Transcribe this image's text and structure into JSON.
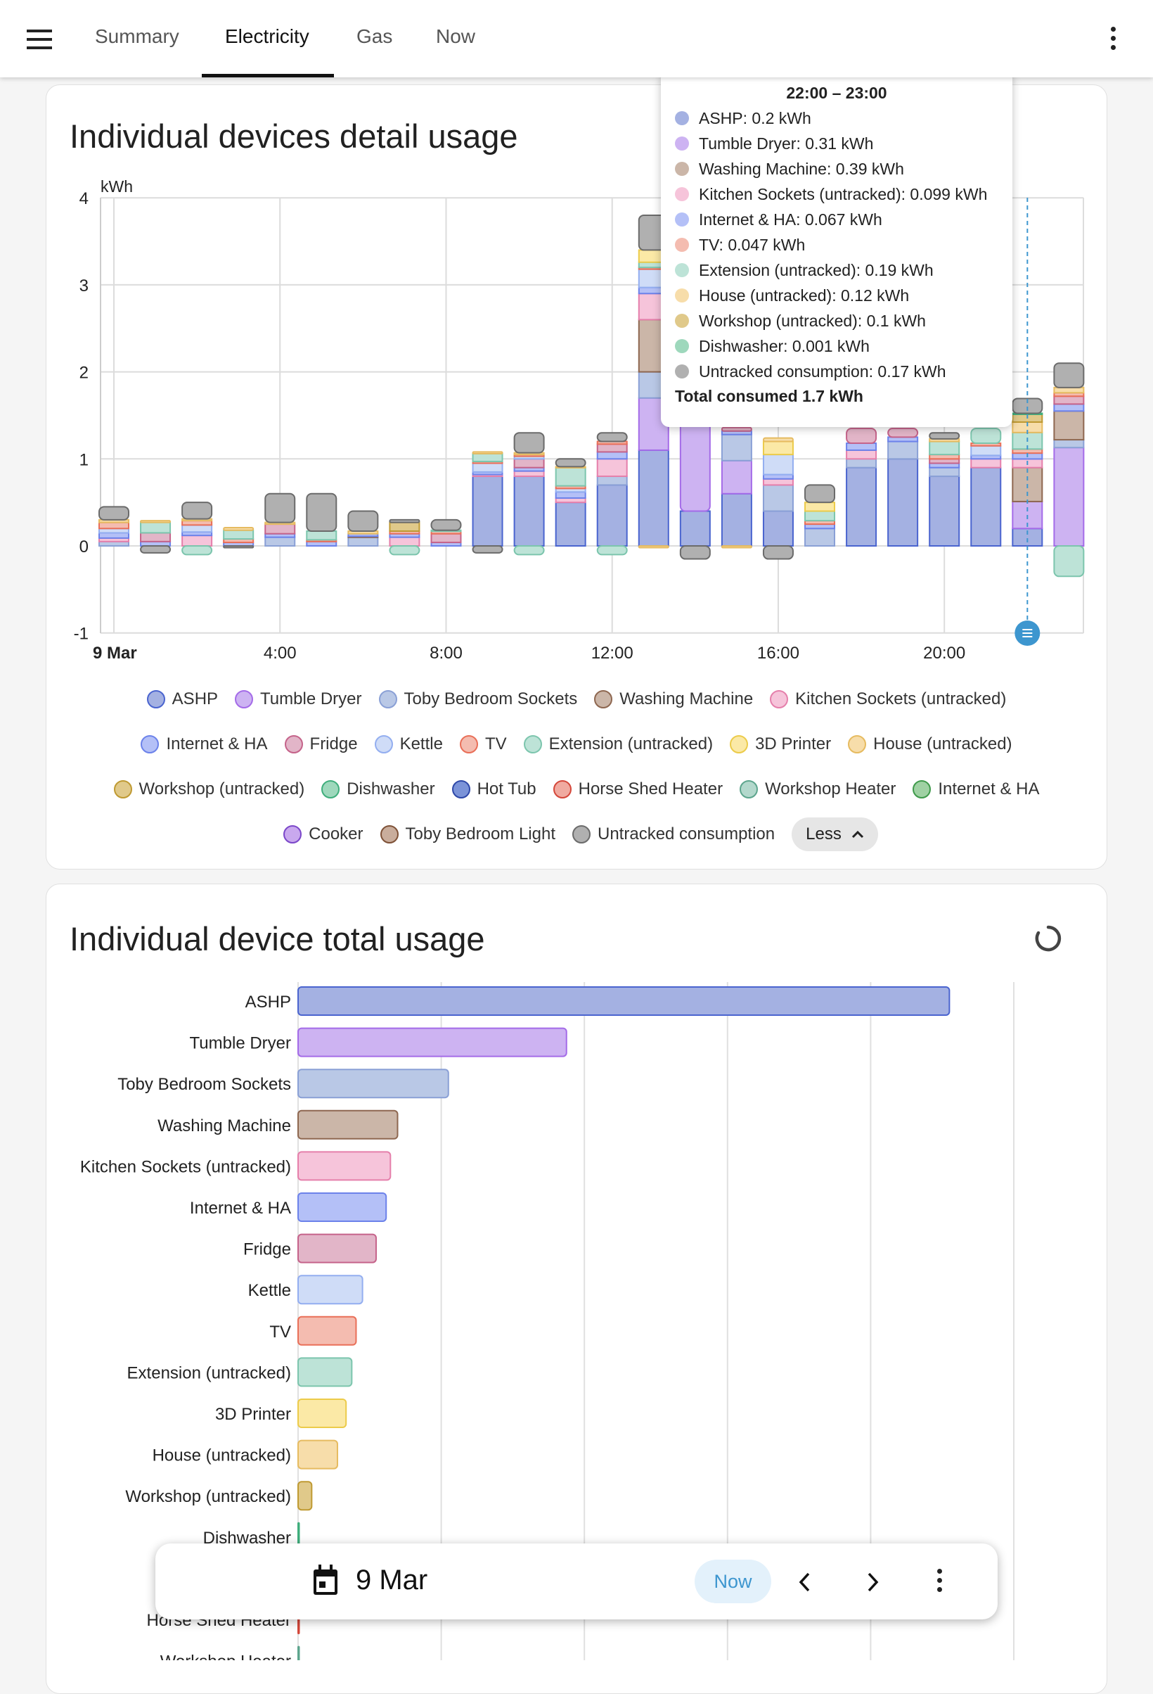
{
  "topbar": {
    "tabs": [
      {
        "label": "Summary",
        "active": false
      },
      {
        "label": "Electricity",
        "active": true
      },
      {
        "label": "Gas",
        "active": false
      },
      {
        "label": "Now",
        "active": false
      }
    ]
  },
  "detail_card": {
    "title": "Individual devices detail usage",
    "less_label": "Less"
  },
  "total_card": {
    "title": "Individual device total usage"
  },
  "tooltip": {
    "title": "22:00 – 23:00",
    "lines": [
      {
        "text": "ASHP: 0.2 kWh",
        "color": "#a4b1e2"
      },
      {
        "text": "Tumble Dryer: 0.31 kWh",
        "color": "#cdb3f2"
      },
      {
        "text": "Washing Machine: 0.39 kWh",
        "color": "#cbb6a8"
      },
      {
        "text": "Kitchen Sockets (untracked): 0.099 kWh",
        "color": "#f6c4da"
      },
      {
        "text": "Internet & HA: 0.067 kWh",
        "color": "#b4c0f7"
      },
      {
        "text": "TV: 0.047 kWh",
        "color": "#f4bcb0"
      },
      {
        "text": "Extension (untracked): 0.19 kWh",
        "color": "#bde3d7"
      },
      {
        "text": "House (untracked): 0.12 kWh",
        "color": "#f7ddaa"
      },
      {
        "text": "Workshop (untracked): 0.1 kWh",
        "color": "#e0c98a"
      },
      {
        "text": "Dishwasher: 0.001 kWh",
        "color": "#9ed8bc"
      },
      {
        "text": "Untracked consumption: 0.17 kWh",
        "color": "#b0b0b0"
      }
    ],
    "total": "Total consumed 1.7 kWh"
  },
  "datebar": {
    "date": "9 Mar",
    "now_label": "Now"
  },
  "chart_data": [
    {
      "type": "bar",
      "stacked": true,
      "ylabel": "kWh",
      "ylim": [
        -1,
        4
      ],
      "yticks": [
        "-1",
        "0",
        "1",
        "2",
        "3",
        "4"
      ],
      "x": [
        "0:00",
        "1:00",
        "2:00",
        "3:00",
        "4:00",
        "5:00",
        "6:00",
        "7:00",
        "8:00",
        "9:00",
        "10:00",
        "11:00",
        "12:00",
        "13:00",
        "14:00",
        "15:00",
        "16:00",
        "17:00",
        "18:00",
        "19:00",
        "20:00",
        "21:00",
        "22:00",
        "23:00"
      ],
      "xticks": [
        {
          "hour": 0,
          "label": "9 Mar"
        },
        {
          "hour": 4,
          "label": "4:00"
        },
        {
          "hour": 8,
          "label": "8:00"
        },
        {
          "hour": 12,
          "label": "12:00"
        },
        {
          "hour": 16,
          "label": "16:00"
        },
        {
          "hour": 20,
          "label": "20:00"
        }
      ],
      "highlighted_hour": 22,
      "grid": true,
      "legend_placement": "bottom",
      "series": [
        {
          "name": "ASHP",
          "color": "#a4b1e2",
          "border": "#4a64cf",
          "values": [
            0,
            0,
            0,
            0,
            0,
            0,
            0,
            0,
            0,
            0.8,
            0.8,
            0.5,
            0.7,
            1.1,
            0.4,
            0.6,
            0.4,
            0,
            0.9,
            1.0,
            0.8,
            0.9,
            0.2,
            0
          ]
        },
        {
          "name": "Tumble Dryer",
          "color": "#cdb3f2",
          "border": "#a46be8",
          "values": [
            0,
            0,
            0,
            0,
            0,
            0,
            0,
            0,
            0,
            0,
            0,
            0,
            0,
            0.6,
            1.2,
            0.38,
            0,
            0,
            0,
            0,
            0,
            0,
            0.31,
            1.13
          ]
        },
        {
          "name": "Toby Bedroom Sockets",
          "color": "#b9c8e6",
          "border": "#8aa0d6",
          "values": [
            0.05,
            0,
            0,
            0,
            0.1,
            0,
            0.1,
            0,
            0,
            0,
            0,
            0,
            0.1,
            0.3,
            0,
            0.3,
            0.3,
            0.2,
            0.1,
            0.2,
            0.1,
            0,
            0,
            0.09
          ]
        },
        {
          "name": "Washing Machine",
          "color": "#cbb6a8",
          "border": "#8e6750",
          "values": [
            0,
            0,
            0,
            0,
            0,
            0,
            0.01,
            0,
            0,
            0,
            0,
            0,
            0,
            0.6,
            0,
            0,
            0,
            0,
            0,
            0,
            0,
            0,
            0.39,
            0.33
          ]
        },
        {
          "name": "Kitchen Sockets (untracked)",
          "color": "#f6c4da",
          "border": "#e57fab",
          "values": [
            0.04,
            0,
            0.12,
            0,
            0,
            0,
            0,
            0.1,
            0,
            0.02,
            0.06,
            0.05,
            0.2,
            0.3,
            0,
            0,
            0.07,
            0,
            0.1,
            0,
            0,
            0.1,
            0.099,
            0
          ]
        },
        {
          "name": "Internet & HA",
          "color": "#b4c0f7",
          "border": "#6c82ea",
          "values": [
            0.06,
            0.05,
            0.04,
            0.04,
            0.04,
            0.05,
            0.03,
            0.04,
            0.04,
            0.03,
            0.04,
            0.07,
            0.08,
            0.07,
            0,
            0.04,
            0.05,
            0.05,
            0.08,
            0.05,
            0.05,
            0.04,
            0.067,
            0.08
          ]
        },
        {
          "name": "Fridge",
          "color": "#e2b5c8",
          "border": "#c5638a",
          "values": [
            0,
            0.1,
            0,
            0,
            0.11,
            0,
            0,
            0,
            0.1,
            0,
            0.1,
            0,
            0.09,
            0,
            0,
            0.04,
            0,
            0,
            0.17,
            0.1,
            0.05,
            0,
            0,
            0.09
          ]
        },
        {
          "name": "Kettle",
          "color": "#cfdcf7",
          "border": "#93aef0",
          "values": [
            0.05,
            0,
            0.08,
            0,
            0,
            0,
            0,
            0,
            0,
            0.1,
            0.03,
            0.04,
            0,
            0.21,
            0,
            0,
            0.23,
            0,
            0,
            0,
            0,
            0.11,
            0,
            0
          ]
        },
        {
          "name": "TV",
          "color": "#f4bcb0",
          "border": "#e96f58",
          "values": [
            0.07,
            0,
            0.05,
            0.04,
            0,
            0.02,
            0,
            0.03,
            0.03,
            0.02,
            0.02,
            0.03,
            0.03,
            0.02,
            0,
            0,
            0,
            0.04,
            0,
            0,
            0.05,
            0.03,
            0.047,
            0.04
          ]
        },
        {
          "name": "Extension (untracked)",
          "color": "#bde3d7",
          "border": "#7cc5ad",
          "values": [
            0,
            0.12,
            -0.1,
            0.1,
            0,
            0.1,
            0,
            -0.1,
            0.01,
            0.09,
            -0.1,
            0.21,
            -0.1,
            0.06,
            0,
            0,
            0,
            0.11,
            0,
            0,
            0.15,
            0.17,
            0.19,
            -0.35
          ]
        },
        {
          "name": "3D Printer",
          "color": "#fbe9a6",
          "border": "#eccb4a",
          "values": [
            0,
            0,
            0,
            0,
            0,
            0,
            0,
            0,
            0,
            0,
            0,
            0,
            0,
            0.14,
            0,
            0,
            0.15,
            0.1,
            0,
            0,
            0,
            0,
            0,
            0
          ]
        },
        {
          "name": "House (untracked)",
          "color": "#f7ddaa",
          "border": "#e6bb60",
          "values": [
            0.03,
            0.02,
            0.02,
            0.03,
            0.02,
            0,
            0.03,
            0,
            0,
            0.02,
            0.02,
            0.01,
            0,
            -0.02,
            0,
            -0.02,
            0.04,
            0,
            0,
            0,
            0.03,
            0,
            0.12,
            0.06
          ]
        },
        {
          "name": "Workshop (untracked)",
          "color": "#e0c98a",
          "border": "#bf9a32",
          "values": [
            0,
            0,
            0,
            0,
            0,
            0,
            0,
            0.1,
            0,
            0,
            0,
            0,
            0,
            0,
            0,
            0,
            0,
            0,
            0,
            0,
            0,
            0,
            0.1,
            0
          ]
        },
        {
          "name": "Dishwasher",
          "color": "#9ed8bc",
          "border": "#3fae7c",
          "values": [
            0,
            0,
            0,
            0,
            0,
            0,
            0,
            0,
            0,
            0,
            0,
            0,
            0,
            0,
            0,
            0,
            0,
            0,
            0,
            0,
            0,
            0,
            0.001,
            0
          ]
        },
        {
          "name": "Hot Tub",
          "color": "#7b93d8",
          "border": "#2e48a8",
          "values": [
            0,
            0,
            0,
            0,
            0,
            0,
            0,
            0,
            0,
            0,
            0,
            0,
            0,
            0,
            0,
            0,
            0,
            0,
            0,
            0,
            0,
            0,
            0,
            0
          ]
        },
        {
          "name": "Horse Shed Heater",
          "color": "#f0aaa0",
          "border": "#d4473a",
          "values": [
            0,
            0,
            0,
            0,
            0,
            0,
            0,
            0,
            0,
            0,
            0,
            0,
            0,
            0,
            0,
            0,
            0,
            0,
            0,
            0,
            0,
            0,
            0,
            0
          ]
        },
        {
          "name": "Workshop Heater",
          "color": "#b3d8cc",
          "border": "#5da58d",
          "values": [
            0,
            0,
            0,
            0,
            0,
            0,
            0,
            0,
            0,
            0,
            0,
            0,
            0,
            0,
            0,
            0,
            0,
            0,
            0,
            0,
            0,
            0,
            0,
            0
          ]
        },
        {
          "name": "Internet & HA",
          "color": "#9fd1a3",
          "border": "#3f9a4b",
          "values": [
            0,
            0,
            0,
            0,
            0,
            0,
            0,
            0,
            0,
            0,
            0,
            0,
            0,
            0,
            0,
            0,
            0,
            0,
            0,
            0,
            0,
            0,
            0,
            0
          ]
        },
        {
          "name": "Cooker",
          "color": "#c9a8ee",
          "border": "#7b47c9",
          "values": [
            0,
            0,
            0,
            0,
            0,
            0,
            0,
            0,
            0,
            0,
            0,
            0,
            0,
            0,
            0,
            0,
            0,
            0,
            0,
            0,
            0,
            0,
            0,
            0
          ]
        },
        {
          "name": "Toby Bedroom Light",
          "color": "#c9ad9c",
          "border": "#7e5137",
          "values": [
            0,
            0,
            0,
            0,
            0,
            0,
            0,
            0,
            0,
            0,
            0,
            0,
            0,
            0,
            0,
            0,
            0,
            0,
            0,
            0,
            0,
            0,
            0,
            0
          ]
        },
        {
          "name": "Untracked consumption",
          "color": "#b0b0b0",
          "border": "#6b6b6b",
          "values": [
            0.15,
            -0.08,
            0.19,
            -0.02,
            0.33,
            0.43,
            0.23,
            0.03,
            0.12,
            -0.08,
            0.23,
            0.09,
            0.1,
            0.4,
            -0.15,
            0,
            -0.15,
            0.2,
            0,
            0,
            0.07,
            0,
            0.17,
            0.28
          ]
        }
      ]
    },
    {
      "type": "bar",
      "orientation": "horizontal",
      "unit": "kWh",
      "grid": true,
      "categories": [
        "ASHP",
        "Tumble Dryer",
        "Toby Bedroom Sockets",
        "Washing Machine",
        "Kitchen Sockets (untracked)",
        "Internet & HA",
        "Fridge",
        "Kettle",
        "TV",
        "Extension (untracked)",
        "3D Printer",
        "House (untracked)",
        "Workshop (untracked)",
        "Dishwasher",
        "Hot Tub",
        "Horse Shed Heater",
        "Workshop Heater"
      ],
      "values": [
        9.1,
        3.75,
        2.1,
        1.39,
        1.29,
        1.23,
        1.09,
        0.9,
        0.81,
        0.75,
        0.67,
        0.55,
        0.19,
        0.01,
        0,
        0.01,
        0.01
      ],
      "colors": [
        "#a4b1e2",
        "#cdb3f2",
        "#b9c8e6",
        "#cbb6a8",
        "#f6c4da",
        "#b4c0f7",
        "#e2b5c8",
        "#cfdcf7",
        "#f4bcb0",
        "#bde3d7",
        "#fbe9a6",
        "#f7ddaa",
        "#e0c98a",
        "#9ed8bc",
        "#7b93d8",
        "#f0aaa0",
        "#b3d8cc"
      ],
      "borders": [
        "#4a64cf",
        "#a46be8",
        "#8aa0d6",
        "#8e6750",
        "#e57fab",
        "#6c82ea",
        "#c5638a",
        "#93aef0",
        "#e96f58",
        "#7cc5ad",
        "#eccb4a",
        "#e6bb60",
        "#bf9a32",
        "#3fae7c",
        "#2e48a8",
        "#d4473a",
        "#5da58d"
      ],
      "xgrid_step": 2
    }
  ]
}
